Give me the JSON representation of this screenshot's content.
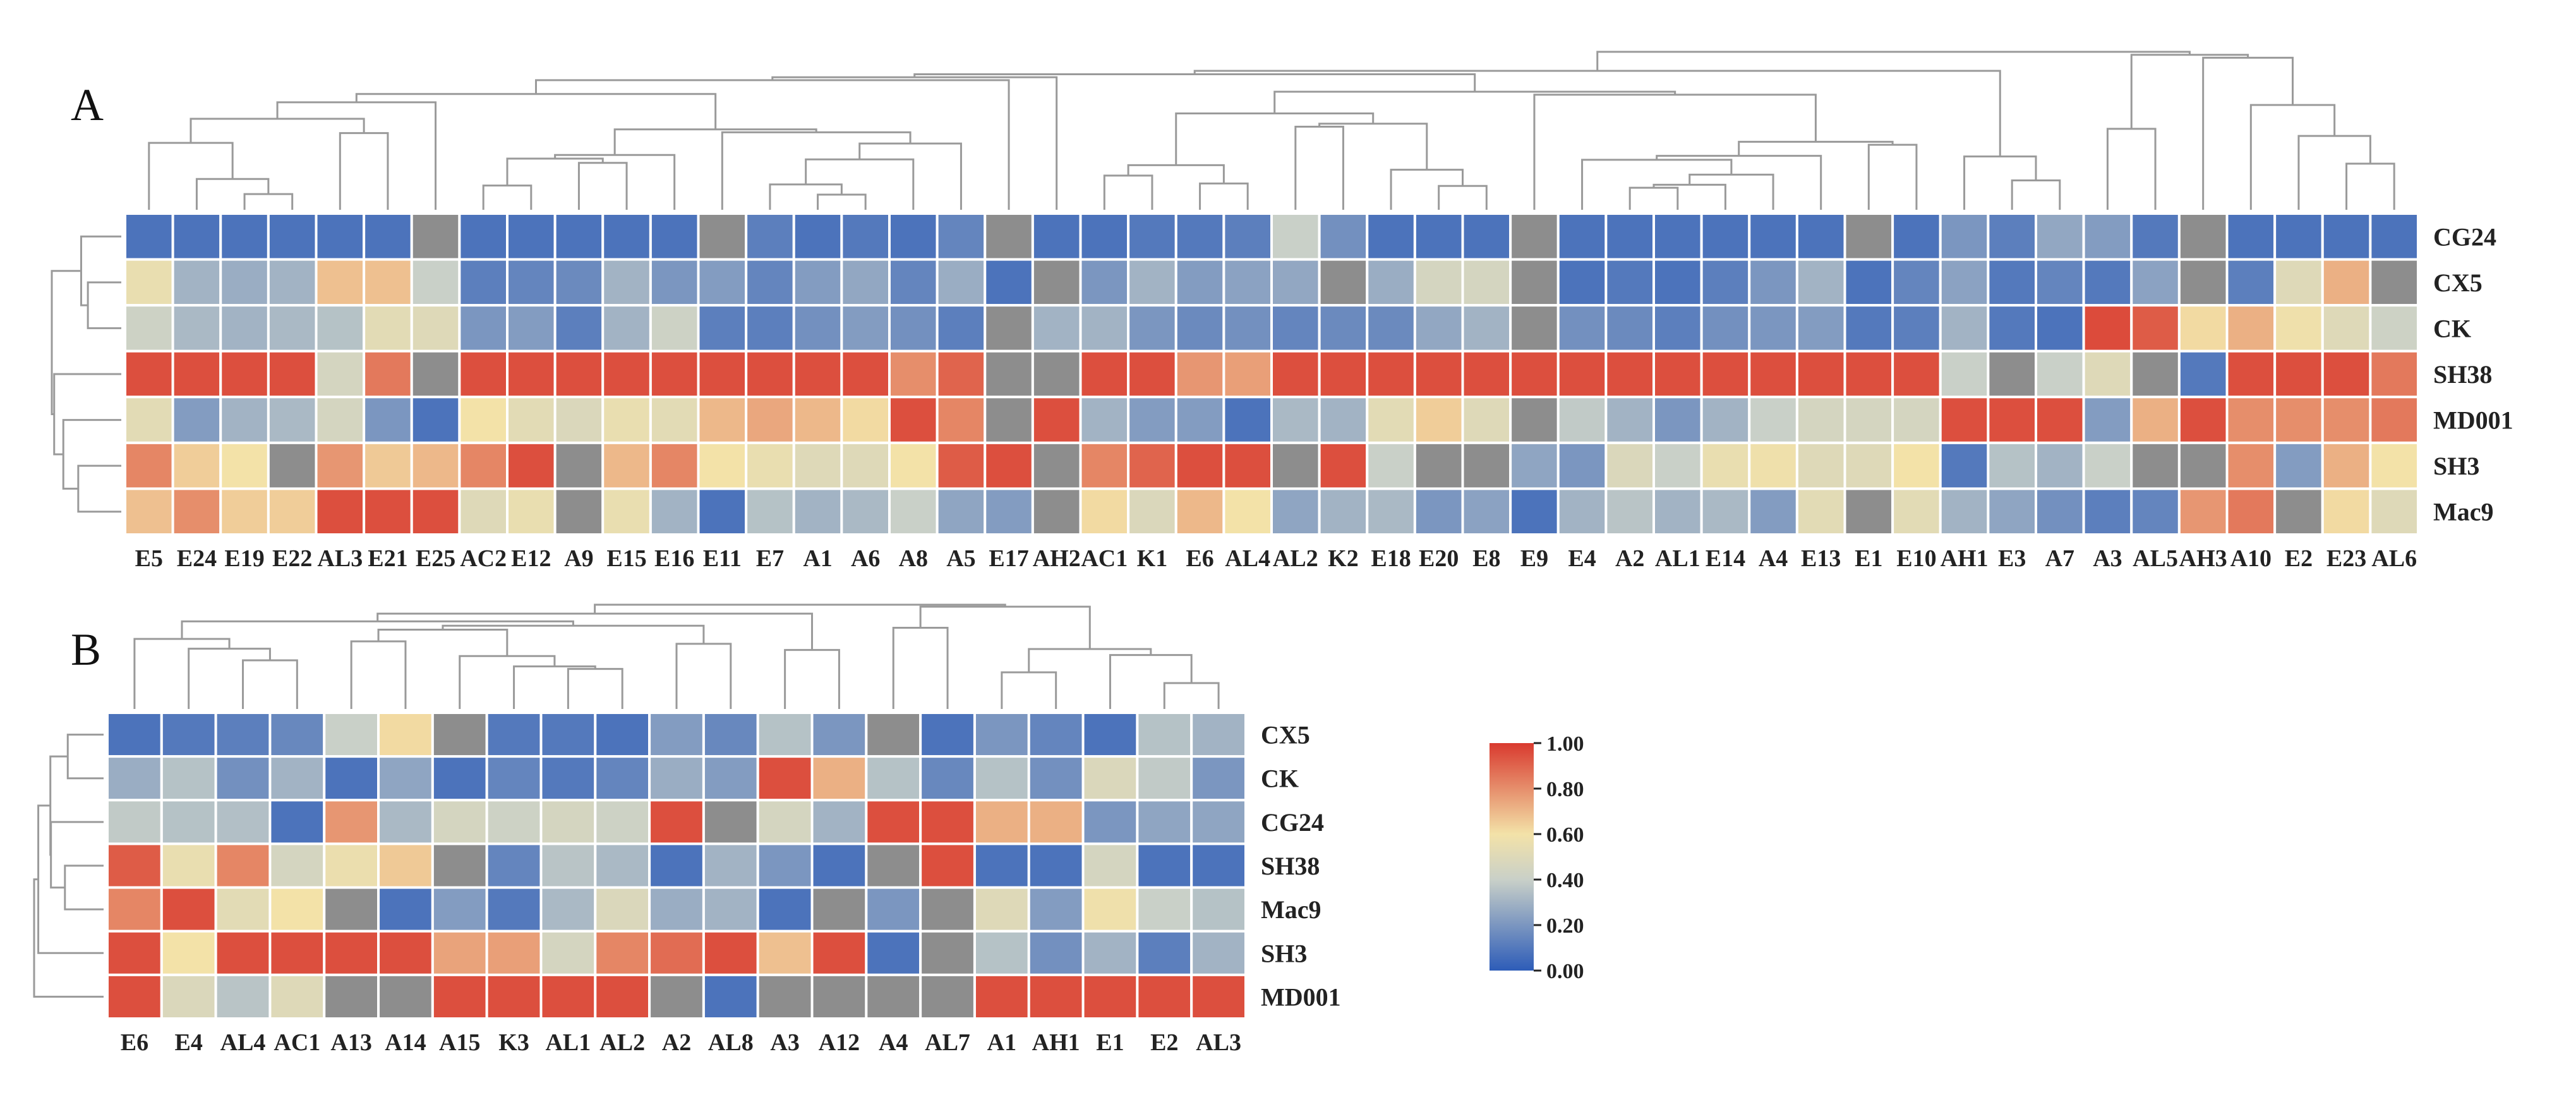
{
  "chart_data": [
    {
      "type": "heatmap",
      "panel_label": "A",
      "rows": [
        "CG24",
        "CX5",
        "CK",
        "SH38",
        "MD001",
        "SH3",
        "Mac9"
      ],
      "columns": [
        "E5",
        "E24",
        "E19",
        "E22",
        "AL3",
        "E21",
        "E25",
        "AC2",
        "E12",
        "A9",
        "E15",
        "E16",
        "E11",
        "E7",
        "A1",
        "A6",
        "A8",
        "A5",
        "E17",
        "AH2",
        "AC1",
        "K1",
        "E6",
        "AL4",
        "AL2",
        "K2",
        "E18",
        "E20",
        "E8",
        "E9",
        "E4",
        "A2",
        "AL1",
        "E14",
        "A4",
        "E13",
        "E1",
        "E10",
        "AH1",
        "E3",
        "A7",
        "A3",
        "AL5",
        "AH3",
        "A10",
        "E2",
        "E23",
        "AL6"
      ],
      "values": [
        [
          0.08,
          0.08,
          0.08,
          0.08,
          0.08,
          0.08,
          null,
          0.08,
          0.08,
          0.08,
          0.08,
          0.08,
          null,
          0.12,
          0.08,
          0.1,
          0.08,
          0.14,
          null,
          0.08,
          0.08,
          0.1,
          0.1,
          0.12,
          0.4,
          0.18,
          0.08,
          0.08,
          0.08,
          null,
          0.08,
          0.08,
          0.08,
          0.08,
          0.08,
          0.08,
          null,
          0.08,
          0.2,
          0.12,
          0.26,
          0.22,
          0.1,
          null,
          0.08,
          0.08,
          0.08,
          0.08
        ],
        [
          0.55,
          0.3,
          0.28,
          0.3,
          0.68,
          0.68,
          0.4,
          0.12,
          0.14,
          0.16,
          0.3,
          0.2,
          0.22,
          0.14,
          0.22,
          0.26,
          0.14,
          0.28,
          0.08,
          null,
          0.2,
          0.3,
          0.22,
          0.24,
          0.26,
          null,
          0.28,
          0.45,
          0.45,
          null,
          0.08,
          0.1,
          0.08,
          0.12,
          0.2,
          0.3,
          0.08,
          0.14,
          0.24,
          0.1,
          0.14,
          0.1,
          0.24,
          null,
          0.12,
          0.5,
          0.72,
          null
        ],
        [
          0.42,
          0.32,
          0.3,
          0.32,
          0.35,
          0.52,
          0.5,
          0.2,
          0.22,
          0.12,
          0.3,
          0.42,
          0.12,
          0.12,
          0.18,
          0.22,
          0.18,
          0.12,
          null,
          0.3,
          0.3,
          0.2,
          0.16,
          0.18,
          0.14,
          0.16,
          0.16,
          0.26,
          0.3,
          null,
          0.18,
          0.16,
          0.12,
          0.18,
          0.2,
          0.22,
          0.1,
          0.12,
          0.3,
          0.1,
          0.08,
          0.96,
          0.92,
          0.62,
          0.72,
          0.58,
          0.5,
          0.42
        ],
        [
          0.95,
          0.95,
          0.95,
          0.95,
          0.45,
          0.85,
          null,
          0.95,
          0.95,
          0.95,
          0.95,
          0.95,
          0.95,
          0.95,
          0.95,
          0.95,
          0.8,
          0.9,
          null,
          null,
          0.95,
          0.95,
          0.78,
          0.76,
          0.95,
          0.95,
          0.95,
          0.95,
          0.95,
          0.95,
          0.95,
          0.95,
          0.95,
          0.95,
          0.95,
          0.95,
          0.95,
          0.95,
          0.4,
          null,
          0.4,
          0.5,
          null,
          0.1,
          0.95,
          0.95,
          0.95,
          0.85
        ],
        [
          0.52,
          0.22,
          0.3,
          0.32,
          0.45,
          0.2,
          0.08,
          0.6,
          0.52,
          0.48,
          0.55,
          0.52,
          0.7,
          0.74,
          0.7,
          0.62,
          0.95,
          0.82,
          null,
          0.95,
          0.3,
          0.22,
          0.22,
          0.08,
          0.32,
          0.3,
          0.52,
          0.65,
          0.5,
          null,
          0.38,
          0.3,
          0.2,
          0.3,
          0.4,
          0.45,
          0.45,
          0.45,
          0.95,
          0.95,
          0.95,
          0.22,
          0.72,
          0.95,
          0.8,
          0.8,
          0.8,
          0.85
        ],
        [
          0.82,
          0.65,
          0.6,
          null,
          0.78,
          0.66,
          0.7,
          0.82,
          0.95,
          null,
          0.7,
          0.82,
          0.6,
          0.55,
          0.5,
          0.5,
          0.6,
          0.92,
          0.95,
          null,
          0.82,
          0.9,
          0.95,
          0.95,
          null,
          0.95,
          0.4,
          null,
          null,
          0.25,
          0.2,
          0.48,
          0.4,
          0.55,
          0.58,
          0.5,
          0.5,
          0.6,
          0.1,
          0.35,
          0.3,
          0.4,
          null,
          null,
          0.8,
          0.22,
          0.72,
          0.6
        ],
        [
          0.68,
          0.8,
          0.65,
          0.65,
          0.95,
          0.95,
          0.95,
          0.5,
          0.55,
          null,
          0.55,
          0.3,
          0.08,
          0.35,
          0.3,
          0.32,
          0.4,
          0.25,
          0.22,
          null,
          0.62,
          0.48,
          0.7,
          0.6,
          0.25,
          0.3,
          0.32,
          0.2,
          0.24,
          0.08,
          0.3,
          0.36,
          0.3,
          0.32,
          0.22,
          0.52,
          null,
          0.52,
          0.3,
          0.25,
          0.18,
          0.12,
          0.14,
          0.78,
          0.85,
          null,
          0.62,
          0.5
        ]
      ],
      "missing_color": "#8d8d8d"
    },
    {
      "type": "heatmap",
      "panel_label": "B",
      "rows": [
        "CX5",
        "CK",
        "CG24",
        "SH38",
        "Mac9",
        "SH3",
        "MD001"
      ],
      "columns": [
        "E6",
        "E4",
        "AL4",
        "AC1",
        "A13",
        "A14",
        "A15",
        "K3",
        "AL1",
        "AL2",
        "A2",
        "AL8",
        "A3",
        "A12",
        "A4",
        "AL7",
        "A1",
        "AH1",
        "E1",
        "E2",
        "AL3"
      ],
      "values": [
        [
          0.08,
          0.1,
          0.12,
          0.15,
          0.4,
          0.62,
          null,
          0.1,
          0.1,
          0.08,
          0.22,
          0.15,
          0.35,
          0.2,
          null,
          0.08,
          0.2,
          0.14,
          0.08,
          0.35,
          0.3
        ],
        [
          0.28,
          0.35,
          0.18,
          0.3,
          0.08,
          0.25,
          0.08,
          0.14,
          0.1,
          0.14,
          0.28,
          0.22,
          0.95,
          0.72,
          0.35,
          0.15,
          0.35,
          0.18,
          0.48,
          0.38,
          0.2
        ],
        [
          0.38,
          0.35,
          0.34,
          0.08,
          0.78,
          0.32,
          0.45,
          0.42,
          0.45,
          0.42,
          0.95,
          null,
          0.45,
          0.3,
          0.95,
          0.95,
          0.72,
          0.72,
          0.2,
          0.25,
          0.25
        ],
        [
          0.92,
          0.55,
          0.82,
          0.45,
          0.56,
          0.66,
          null,
          0.14,
          0.36,
          0.32,
          0.08,
          0.3,
          0.2,
          0.08,
          null,
          0.95,
          0.08,
          0.08,
          0.45,
          0.08,
          0.08
        ],
        [
          0.82,
          0.95,
          0.52,
          0.6,
          null,
          0.08,
          0.22,
          0.1,
          0.32,
          0.48,
          0.28,
          0.3,
          0.08,
          null,
          0.2,
          null,
          0.5,
          0.22,
          0.58,
          0.4,
          0.35
        ],
        [
          0.95,
          0.6,
          0.95,
          0.95,
          0.95,
          0.95,
          0.75,
          0.76,
          0.45,
          0.82,
          0.88,
          0.95,
          0.68,
          0.95,
          0.08,
          null,
          0.35,
          0.18,
          0.3,
          0.12,
          0.3
        ],
        [
          0.95,
          0.48,
          0.36,
          0.5,
          null,
          null,
          0.95,
          0.95,
          0.95,
          0.95,
          null,
          0.08,
          null,
          null,
          null,
          null,
          0.95,
          0.95,
          0.95,
          0.95,
          0.95
        ]
      ],
      "missing_color": "#8d8d8d"
    }
  ],
  "colorbar": {
    "min": 0.0,
    "max": 1.0,
    "tick_labels": [
      "1.00",
      "0.80",
      "0.60",
      "0.40",
      "0.20",
      "0.00"
    ],
    "colors": [
      "#2d5cb8",
      "#c9d0c8",
      "#f3e2a8",
      "#d93a2f"
    ]
  }
}
